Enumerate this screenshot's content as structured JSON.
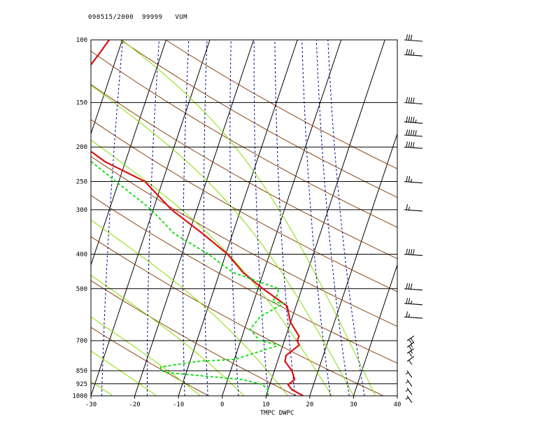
{
  "header": {
    "date": "090515/2000",
    "station_id": "99999",
    "station": "VUM"
  },
  "chart_data": {
    "type": "skew-t log-p",
    "title": "090515/2000 99999 VUM",
    "xlabel": "TMPC DWPC",
    "ylabel": "",
    "x_ticks": [
      -30,
      -20,
      -10,
      0,
      10,
      20,
      30,
      40
    ],
    "x_tick_labels": [
      "-30",
      "-20",
      "-10",
      "0",
      "10",
      "20",
      "30",
      "40"
    ],
    "y_ticks": [
      1000,
      925,
      850,
      700,
      500,
      400,
      300,
      250,
      200,
      150,
      100
    ],
    "y_tick_labels": [
      "1000",
      "925",
      "850",
      "700",
      "500",
      "400",
      "300",
      "250",
      "200",
      "150",
      "100"
    ],
    "xlim": [
      -30,
      40
    ],
    "ylim": [
      1000,
      100
    ],
    "isotherms_c": [
      -120,
      -110,
      -100,
      -90,
      -80,
      -70,
      -60,
      -50,
      -40,
      -30,
      -20,
      -10,
      0,
      10,
      20,
      30,
      40
    ],
    "dry_adiabats_theta_k": [
      270,
      290,
      310,
      330,
      350,
      370,
      390,
      410,
      430,
      450
    ],
    "moist_adiabats_thetae_c": [
      -25,
      -15,
      -5,
      5,
      15,
      25,
      30,
      35
    ],
    "mixing_ratio_gkg": [
      0.4,
      1,
      2,
      3,
      5,
      8,
      12,
      20,
      26,
      32
    ],
    "series": [
      {
        "name": "TMPC",
        "color": "#dd1111",
        "pressure": [
          1000,
          960,
          930,
          900,
          850,
          800,
          770,
          720,
          700,
          680,
          620,
          560,
          500,
          450,
          400,
          350,
          300,
          250,
          220,
          200,
          180,
          172,
          165,
          155,
          140,
          120,
          110,
          100
        ],
        "values": [
          18.5,
          15.4,
          14.2,
          15.3,
          14.0,
          11.7,
          11.5,
          13.7,
          12.9,
          13.0,
          9.9,
          8.0,
          1.1,
          -4.7,
          -9.6,
          -16.9,
          -25.8,
          -34.0,
          -44.6,
          -50.4,
          -57.4,
          -60.7,
          -59.3,
          -56.0,
          -55.9,
          -55.6,
          -54.3,
          -53.0
        ]
      },
      {
        "name": "DWPC",
        "color": "#00dd00",
        "pressure": [
          1000,
          960,
          930,
          900,
          860,
          850,
          830,
          800,
          790,
          720,
          700,
          650,
          600,
          550,
          545,
          520,
          500,
          450,
          400,
          350,
          300,
          250,
          200,
          180,
          160,
          150,
          140,
          120,
          110,
          100
        ],
        "values": [
          10.4,
          9.9,
          8.4,
          3.4,
          -14.6,
          -15.7,
          -16.3,
          -8.2,
          0.1,
          9.2,
          4.3,
          1.3,
          2.6,
          7.0,
          4.2,
          4.9,
          4.7,
          -7.0,
          -14.0,
          -23.4,
          -30.4,
          -40.6,
          -53.1,
          -66.8,
          -79.4,
          -74.4,
          -77.0,
          -87.9,
          -86.9,
          -84.0
        ]
      }
    ],
    "wind_barbs": [
      {
        "pressure": 100,
        "speed_kt": 30
      },
      {
        "pressure": 110,
        "speed_kt": 35
      },
      {
        "pressure": 150,
        "speed_kt": 40
      },
      {
        "pressure": 170,
        "speed_kt": 45
      },
      {
        "pressure": 185,
        "speed_kt": 50
      },
      {
        "pressure": 200,
        "speed_kt": 40
      },
      {
        "pressure": 250,
        "speed_kt": 25
      },
      {
        "pressure": 300,
        "speed_kt": 15
      },
      {
        "pressure": 400,
        "speed_kt": 40
      },
      {
        "pressure": 500,
        "speed_kt": 30
      },
      {
        "pressure": 550,
        "speed_kt": 25
      },
      {
        "pressure": 600,
        "speed_kt": 15
      },
      {
        "pressure": 700,
        "speed_kt": 20
      },
      {
        "pressure": 730,
        "speed_kt": 15
      },
      {
        "pressure": 760,
        "speed_kt": 15
      },
      {
        "pressure": 800,
        "speed_kt": 10
      },
      {
        "pressure": 850,
        "speed_kt": 5
      },
      {
        "pressure": 900,
        "speed_kt": 5
      },
      {
        "pressure": 950,
        "speed_kt": 5
      },
      {
        "pressure": 1000,
        "speed_kt": 5
      }
    ],
    "colors": {
      "isobar": "#000000",
      "isotherm": "#000000",
      "dry_adiabat": "#8b4513",
      "moist_adiabat": "#88dd00",
      "mixing_ratio": "#000099",
      "barb": "#000000"
    }
  }
}
